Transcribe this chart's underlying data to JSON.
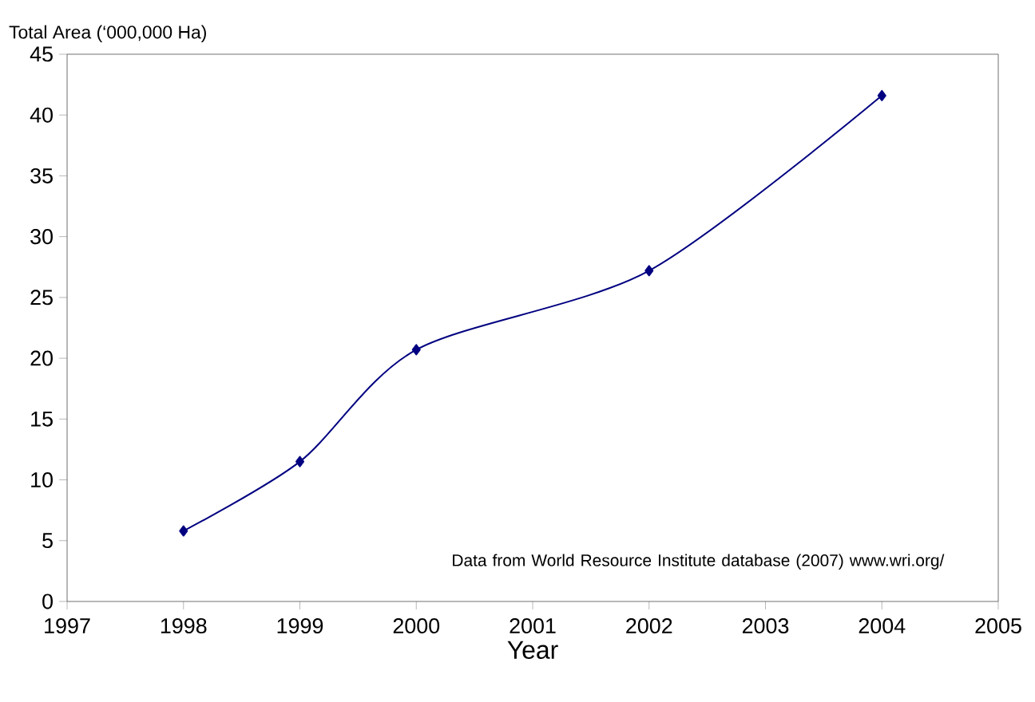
{
  "chart_data": {
    "type": "line",
    "xlabel": "Year",
    "ylabel": "Total Area (‘000,000 Ha)",
    "x": [
      1998,
      1999,
      2000,
      2002,
      2004
    ],
    "series": [
      {
        "color": "#000080",
        "values": [
          5.8,
          11.5,
          20.7,
          27.2,
          41.6
        ]
      }
    ],
    "xlim": [
      1997,
      2005
    ],
    "xticks": [
      1997,
      1998,
      1999,
      2000,
      2001,
      2002,
      2003,
      2004,
      2005
    ],
    "ylim": [
      0,
      45
    ],
    "yticks": [
      0,
      5,
      10,
      15,
      20,
      25,
      30,
      35,
      40,
      45
    ],
    "marker": "diamond",
    "line_style": "solid",
    "annotations": [
      "Data from World Resource Institute database (2007) www.wri.org/"
    ]
  }
}
